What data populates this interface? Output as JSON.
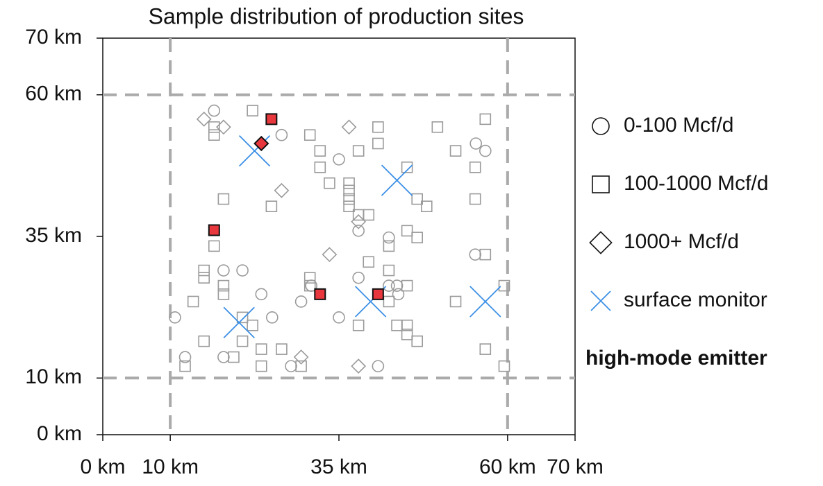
{
  "chart_data": {
    "type": "scatter",
    "title": "Sample distribution of production sites",
    "xlim": [
      0,
      70
    ],
    "ylim": [
      0,
      70
    ],
    "xticks": [
      {
        "value": 0,
        "label": "0 km"
      },
      {
        "value": 10,
        "label": "10 km"
      },
      {
        "value": 35,
        "label": "35 km"
      },
      {
        "value": 60,
        "label": "60 km"
      },
      {
        "value": 70,
        "label": "70 km"
      }
    ],
    "yticks": [
      {
        "value": 0,
        "label": "0 km"
      },
      {
        "value": 10,
        "label": "10 km"
      },
      {
        "value": 35,
        "label": "35 km"
      },
      {
        "value": 60,
        "label": "60 km"
      },
      {
        "value": 70,
        "label": "70 km"
      }
    ],
    "grid_lines": [
      10,
      60
    ],
    "series": [
      {
        "name": "0-100 Mcf/d",
        "marker": "circle",
        "color": "#9a9a9a",
        "x": [
          16.5,
          26.5,
          35.0,
          55.3,
          56.7,
          17.9,
          20.7,
          10.7,
          23.5,
          25.1,
          29.4,
          30.9,
          35.0,
          37.9,
          37.9,
          42.4,
          42.4,
          43.6,
          43.8,
          12.2,
          17.9,
          27.9,
          40.8,
          55.2
        ],
        "y": [
          57.2,
          52.9,
          48.6,
          51.4,
          50.1,
          29.0,
          29.0,
          20.7,
          24.8,
          20.7,
          23.5,
          26.3,
          20.7,
          27.7,
          36.0,
          34.8,
          26.3,
          26.3,
          24.8,
          13.7,
          13.7,
          12.1,
          12.1,
          31.8
        ]
      },
      {
        "name": "100-1000 Mcf/d",
        "marker": "square",
        "color": "#9a9a9a",
        "x": [
          22.2,
          16.5,
          16.5,
          30.7,
          40.8,
          40.8,
          49.6,
          56.7,
          52.3,
          32.2,
          32.2,
          37.9,
          55.2,
          45.1,
          33.6,
          36.5,
          36.5,
          36.5,
          36.5,
          17.9,
          25.0,
          46.6,
          48.0,
          55.2,
          37.9,
          39.4,
          45.1,
          46.6,
          16.5,
          42.4,
          56.7,
          39.4,
          15.0,
          15.0,
          42.4,
          30.7,
          30.7,
          17.9,
          17.9,
          45.1,
          59.5,
          13.4,
          52.3,
          42.4,
          20.7,
          22.2,
          37.9,
          43.6,
          45.1,
          45.1,
          46.6,
          15.0,
          20.7,
          23.5,
          26.5,
          56.7,
          19.4,
          23.5,
          12.2,
          29.4,
          59.5
        ],
        "y": [
          57.2,
          54.3,
          52.9,
          52.9,
          54.3,
          51.4,
          54.3,
          55.7,
          50.1,
          50.1,
          47.2,
          50.1,
          47.2,
          47.2,
          44.4,
          44.4,
          43.1,
          41.6,
          40.3,
          41.6,
          40.3,
          41.6,
          40.3,
          41.6,
          38.8,
          38.8,
          36.0,
          34.8,
          33.3,
          33.3,
          31.8,
          30.5,
          29.0,
          27.7,
          29.0,
          27.7,
          26.3,
          26.3,
          24.8,
          26.3,
          26.3,
          23.5,
          23.5,
          23.5,
          20.7,
          19.3,
          19.3,
          19.3,
          19.3,
          17.7,
          16.5,
          16.5,
          16.5,
          15.1,
          15.1,
          15.1,
          13.7,
          12.1,
          12.1,
          12.1,
          12.1
        ]
      },
      {
        "name": "1000+ Mcf/d",
        "marker": "diamond",
        "color": "#9a9a9a",
        "x": [
          15.0,
          17.9,
          36.5,
          26.5,
          37.9,
          33.6,
          29.4,
          37.9
        ],
        "y": [
          55.7,
          54.3,
          54.3,
          43.1,
          37.6,
          31.8,
          13.7,
          12.1
        ]
      },
      {
        "name": "surface monitor",
        "marker": "x",
        "color": "#3b8fe6",
        "x": [
          22.5,
          43.6,
          20.2,
          39.7,
          56.7
        ],
        "y": [
          50.1,
          44.9,
          19.8,
          23.5,
          23.5
        ]
      },
      {
        "name": "high-mode emitter",
        "marker": "filled",
        "color": "#e8383d",
        "markers": [
          "square",
          "square",
          "square",
          "square",
          "diamond"
        ],
        "x": [
          25.0,
          16.5,
          32.2,
          40.8,
          23.5
        ],
        "y": [
          55.7,
          36.1,
          24.8,
          24.8,
          51.4
        ]
      }
    ]
  }
}
